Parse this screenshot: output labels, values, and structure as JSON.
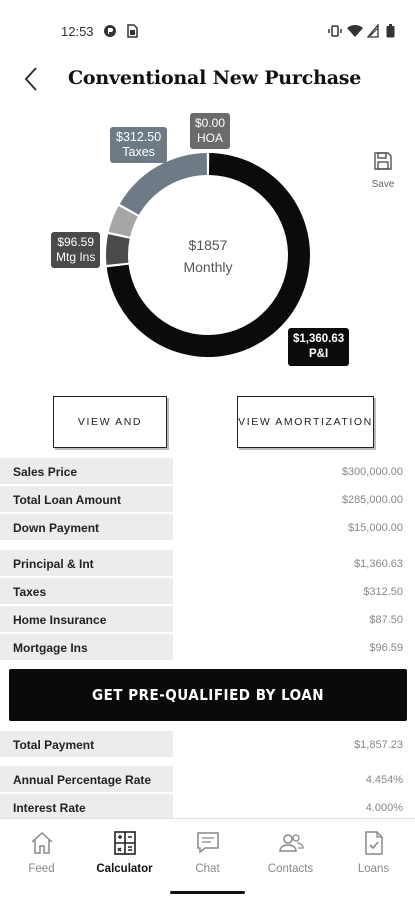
{
  "status_bar": {
    "time": "12:53"
  },
  "header": {
    "title": "Conventional New Purchase"
  },
  "save": {
    "label": "Save"
  },
  "chart_data": {
    "type": "pie",
    "center_amount": "$1857",
    "center_label": "Monthly",
    "slices": [
      {
        "name": "P&I",
        "value_label": "$1,360.63",
        "value": 1360.63,
        "color": "#0b0b0b"
      },
      {
        "name": "Mtg Ins",
        "value_label": "$96.59",
        "value": 96.59,
        "color": "#4a4a4a"
      },
      {
        "name": "Home Insurance",
        "value": 87.5,
        "color": "#a6a6a6"
      },
      {
        "name": "Taxes",
        "value_label": "$312.50",
        "value": 312.5,
        "color": "#6e7b86"
      },
      {
        "name": "HOA",
        "value_label": "$0.00",
        "value": 0.0,
        "color": "#666666"
      }
    ]
  },
  "buttons": {
    "view_share": "VIEW AND SHARE",
    "view_amortization": "VIEW AMORTIZATION"
  },
  "loan_summary": [
    {
      "label": "Sales Price",
      "value": "$300,000.00"
    },
    {
      "label": "Total Loan Amount",
      "value": "$285,000.00"
    },
    {
      "label": "Down Payment",
      "value": "$15,000.00"
    }
  ],
  "payment_breakdown": [
    {
      "label": "Principal & Int",
      "value": "$1,360.63"
    },
    {
      "label": "Taxes",
      "value": "$312.50"
    },
    {
      "label": "Home Insurance",
      "value": "$87.50"
    },
    {
      "label": "Mortgage Ins",
      "value": "$96.59"
    }
  ],
  "cta": {
    "label": "GET PRE-QUALIFIED BY LOAN"
  },
  "totals": [
    {
      "label": "Total Payment",
      "value": "$1,857.23"
    }
  ],
  "rates": [
    {
      "label": "Annual Percentage Rate",
      "value": "4.454%"
    },
    {
      "label": "Interest Rate",
      "value": "4.000%"
    }
  ],
  "tabs": [
    {
      "label": "Feed",
      "icon": "home-icon"
    },
    {
      "label": "Calculator",
      "icon": "calculator-icon",
      "active": true
    },
    {
      "label": "Chat",
      "icon": "chat-icon"
    },
    {
      "label": "Contacts",
      "icon": "contacts-icon"
    },
    {
      "label": "Loans",
      "icon": "document-check-icon"
    }
  ]
}
